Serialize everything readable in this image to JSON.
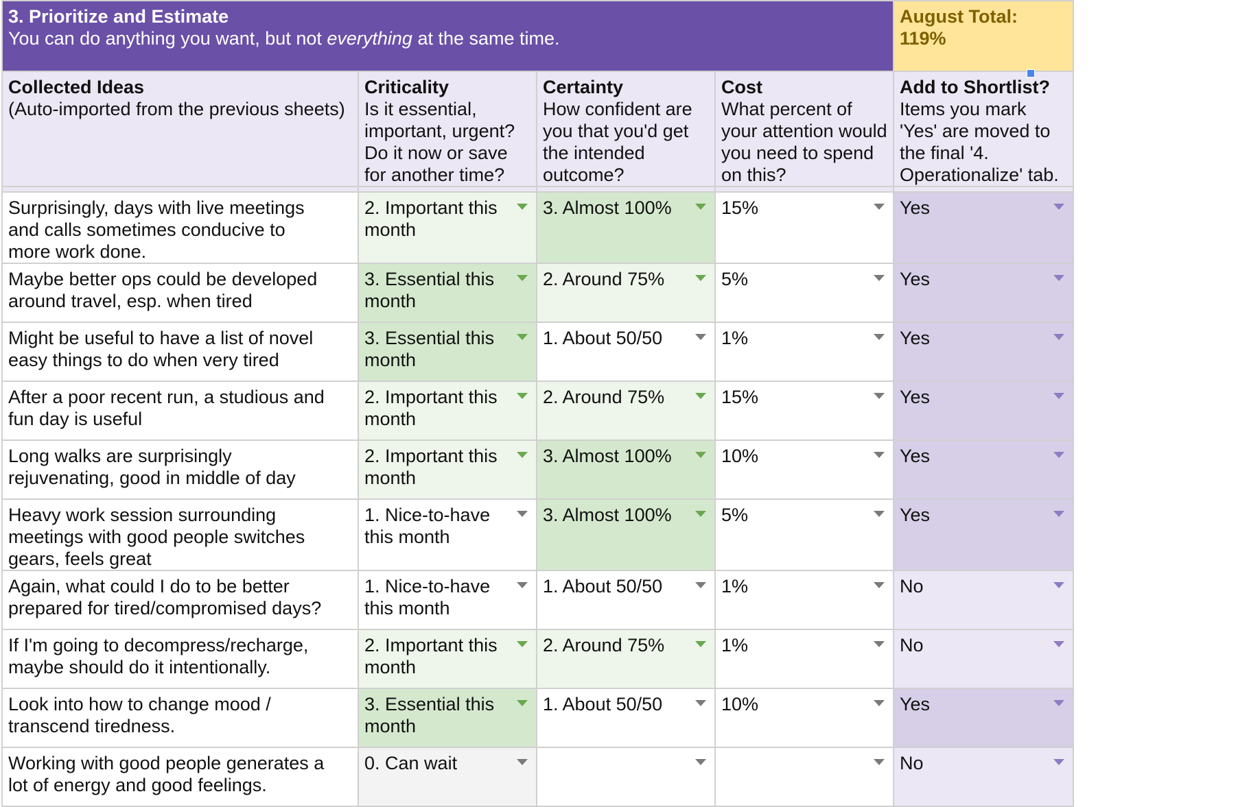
{
  "title": {
    "heading": "3. Prioritize and Estimate",
    "sub_before": "You can do anything you want, but not ",
    "sub_em": "everything",
    "sub_after": " at the same time."
  },
  "total": {
    "label": "August Total:",
    "value": "119%"
  },
  "columns": [
    {
      "title": "Collected Ideas",
      "desc": "(Auto-imported from the previous sheets)"
    },
    {
      "title": "Criticality",
      "desc": "Is it essential, important, urgent? Do it now or save for another time?"
    },
    {
      "title": "Certainty",
      "desc": "How confident are you that you'd get the intended outcome?"
    },
    {
      "title": "Cost",
      "desc": "What percent of your attention would you need to spend on this?"
    },
    {
      "title": "Add to Shortlist?",
      "desc": "Items you mark 'Yes' are moved to the final '4. Operationalize' tab."
    }
  ],
  "rows": [
    {
      "idea": "Surprisingly, days with live meetings and calls sometimes conducive to more work done.",
      "criticality": "2. Important this month",
      "certainty": "3. Almost 100%",
      "cost": "15%",
      "shortlist": "Yes"
    },
    {
      "idea": "Maybe better ops could be developed around travel, esp. when tired",
      "criticality": "3. Essential this month",
      "certainty": "2. Around 75%",
      "cost": "5%",
      "shortlist": "Yes"
    },
    {
      "idea": "Might be useful to have a list of novel easy things to do when very tired",
      "criticality": "3. Essential this month",
      "certainty": "1. About 50/50",
      "cost": "1%",
      "shortlist": "Yes"
    },
    {
      "idea": "After a poor recent run, a studious and fun day is useful",
      "criticality": "2. Important this month",
      "certainty": "2. Around 75%",
      "cost": "15%",
      "shortlist": "Yes"
    },
    {
      "idea": "Long walks are surprisingly rejuvenating, good in middle of day",
      "criticality": "2. Important this month",
      "certainty": "3. Almost 100%",
      "cost": "10%",
      "shortlist": "Yes"
    },
    {
      "idea": "Heavy work session surrounding meetings with good people switches gears, feels great",
      "criticality": "1. Nice-to-have this month",
      "certainty": "3. Almost 100%",
      "cost": "5%",
      "shortlist": "Yes"
    },
    {
      "idea": "Again, what could I do to be better prepared for tired/compromised days?",
      "criticality": "1. Nice-to-have this month",
      "certainty": "1. About 50/50",
      "cost": "1%",
      "shortlist": "No"
    },
    {
      "idea": "If I'm going to decompress/recharge, maybe should do it intentionally.",
      "criticality": "2. Important this month",
      "certainty": "2. Around 75%",
      "cost": "1%",
      "shortlist": "No"
    },
    {
      "idea": "Look into how to change mood / transcend tiredness.",
      "criticality": "3. Essential this month",
      "certainty": "1. About 50/50",
      "cost": "10%",
      "shortlist": "Yes"
    },
    {
      "idea": "Working with good people generates a lot of energy and good feelings.",
      "criticality": "0. Can wait",
      "certainty": "",
      "cost": "",
      "shortlist": "No"
    }
  ],
  "colors": {
    "title_bg": "#6a50a7",
    "total_bg": "#ffe599",
    "essential": "#d4e8cd",
    "important": "#eef5ea",
    "shortlist_yes": "#d6cfe7",
    "shortlist_no": "#ebe7f4"
  }
}
